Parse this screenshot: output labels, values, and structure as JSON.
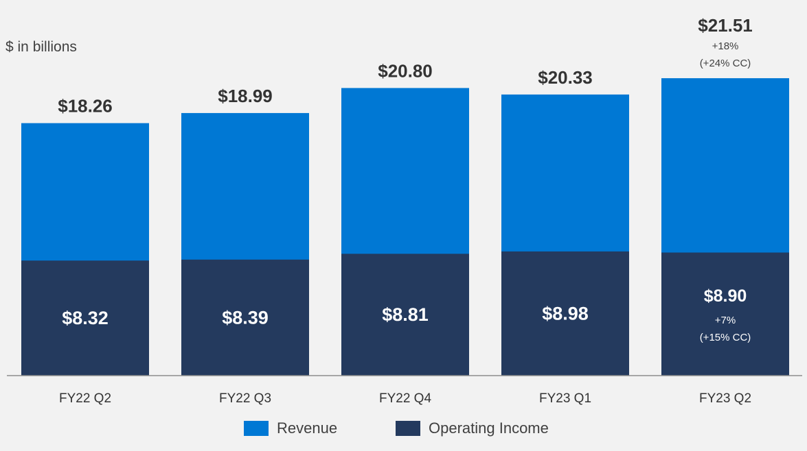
{
  "chart_data": {
    "type": "bar",
    "stacked": false,
    "overlay": true,
    "unit_label": "$ in billions",
    "categories": [
      "FY22 Q2",
      "FY22 Q3",
      "FY22 Q4",
      "FY23 Q1",
      "FY23 Q2"
    ],
    "series": [
      {
        "name": "Revenue",
        "color": "#0078d4",
        "values": [
          18.26,
          18.99,
          20.8,
          20.33,
          21.51
        ],
        "labels": [
          "$18.26",
          "$18.99",
          "$20.80",
          "$20.33",
          "$21.51"
        ]
      },
      {
        "name": "Operating Income",
        "color": "#243a5e",
        "values": [
          8.32,
          8.39,
          8.81,
          8.98,
          8.9
        ],
        "labels": [
          "$8.32",
          "$8.39",
          "$8.81",
          "$8.98",
          "$8.90"
        ]
      }
    ],
    "annotations": {
      "revenue_growth": [
        "+18%",
        "(+24% CC)"
      ],
      "operating_income_growth": [
        "+7%",
        "(+15% CC)"
      ]
    },
    "ylim": [
      0,
      23.2
    ],
    "legend_position": "bottom-center",
    "grid": false
  }
}
